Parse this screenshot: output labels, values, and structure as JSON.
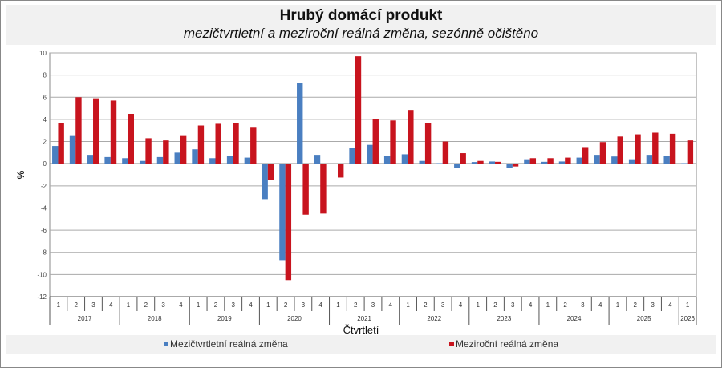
{
  "title": "Hrubý domácí produkt",
  "subtitle": "mezičtvrtletní a meziroční reálná změna, sezónně očištěno",
  "chart_data": {
    "type": "bar",
    "xlabel": "Čtvrtletí",
    "ylabel": "%",
    "ylim": [
      -12,
      10
    ],
    "yticks": [
      10,
      8,
      6,
      4,
      2,
      0,
      -2,
      -4,
      -6,
      -8,
      -10,
      -12
    ],
    "grid": true,
    "legend_position": "bottom",
    "years": [
      "2017",
      "2018",
      "2019",
      "2020",
      "2021",
      "2022",
      "2023",
      "2024",
      "2025",
      "2026"
    ],
    "categories": [
      "1",
      "2",
      "3",
      "4",
      "1",
      "2",
      "3",
      "4",
      "1",
      "2",
      "3",
      "4",
      "1",
      "2",
      "3",
      "4",
      "1",
      "2",
      "3",
      "4",
      "1",
      "2",
      "3",
      "4",
      "1",
      "2",
      "3",
      "4",
      "1",
      "2",
      "3",
      "4",
      "1",
      "2",
      "3",
      "4",
      "1"
    ],
    "category_years": [
      "2017",
      "2017",
      "2017",
      "2017",
      "2018",
      "2018",
      "2018",
      "2018",
      "2019",
      "2019",
      "2019",
      "2019",
      "2020",
      "2020",
      "2020",
      "2020",
      "2021",
      "2021",
      "2021",
      "2021",
      "2022",
      "2022",
      "2022",
      "2022",
      "2023",
      "2023",
      "2023",
      "2023",
      "2024",
      "2024",
      "2024",
      "2024",
      "2025",
      "2025",
      "2025",
      "2025",
      "2026"
    ],
    "series": [
      {
        "name": "Mezičtvrtletní reálná změna",
        "color": "#4a7fc1",
        "values": [
          1.6,
          2.5,
          0.8,
          0.6,
          0.5,
          0.25,
          0.6,
          1.0,
          1.3,
          0.5,
          0.7,
          0.55,
          -3.2,
          -8.7,
          7.3,
          0.8,
          0.0,
          1.4,
          1.7,
          0.7,
          0.85,
          0.25,
          0.05,
          -0.35,
          0.15,
          0.2,
          -0.35,
          0.4,
          0.17,
          0.2,
          0.55,
          0.8,
          0.65,
          0.4,
          0.8,
          0.7,
          0.05
        ]
      },
      {
        "name": "Meziroční reálná změna",
        "color": "#c8141e",
        "values": [
          3.7,
          6.0,
          5.9,
          5.7,
          4.5,
          2.3,
          2.1,
          2.5,
          3.45,
          3.6,
          3.7,
          3.25,
          -1.5,
          -10.5,
          -4.6,
          -4.5,
          -1.25,
          9.7,
          4.0,
          3.9,
          4.85,
          3.7,
          2.0,
          0.95,
          0.25,
          0.17,
          -0.25,
          0.5,
          0.5,
          0.55,
          1.5,
          1.95,
          2.45,
          2.65,
          2.8,
          2.7,
          2.1
        ]
      }
    ]
  }
}
